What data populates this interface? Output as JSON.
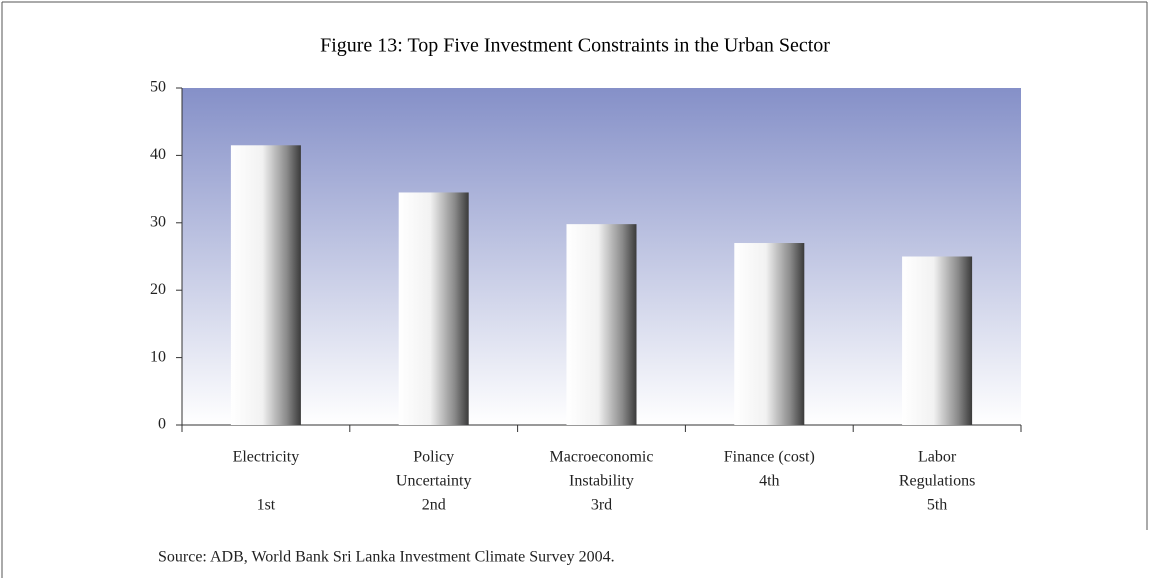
{
  "chart_data": {
    "type": "bar",
    "title": "Figure 13: Top Five Investment Constraints in the Urban Sector",
    "categories": [
      [
        "Electricity",
        "1st"
      ],
      [
        "Policy",
        "Uncertainty",
        "2nd"
      ],
      [
        "Macroeconomic",
        "Instability",
        "3rd"
      ],
      [
        "Finance (cost)",
        "4th"
      ],
      [
        "Labor",
        "Regulations",
        "5th"
      ]
    ],
    "values": [
      41.5,
      34.5,
      29.8,
      27,
      25
    ],
    "ylim": [
      0,
      50
    ],
    "yticks": [
      0,
      10,
      20,
      30,
      40,
      50
    ],
    "source": "Source: ADB, World Bank Sri Lanka Investment Climate Survey 2004."
  }
}
